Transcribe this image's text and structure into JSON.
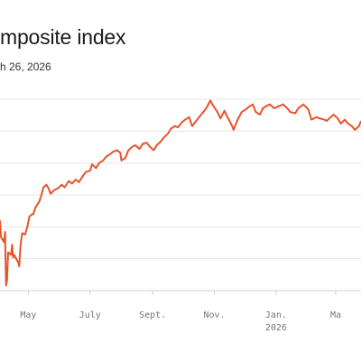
{
  "chart_data": {
    "type": "line",
    "title": "mposite index",
    "subtitle": "h 26, 2026",
    "color": "#e8532b",
    "grid": true,
    "x_ticks": [
      {
        "label": "May",
        "year": "",
        "date": "2025-05-01"
      },
      {
        "label": "July",
        "year": "",
        "date": "2025-07-01"
      },
      {
        "label": "Sept.",
        "year": "",
        "date": "2025-09-01"
      },
      {
        "label": "Nov.",
        "year": "",
        "date": "2025-11-01"
      },
      {
        "label": "Jan.",
        "year": "2026",
        "date": "2026-01-01"
      },
      {
        "label": "Ma",
        "year": "",
        "date": "2026-03-01"
      }
    ],
    "series": [
      {
        "values": [
          [
            "2025-04-03",
            15.5
          ],
          [
            "2025-04-04",
            14.2
          ],
          [
            "2025-04-07",
            13.8
          ],
          [
            "2025-04-08",
            14.6
          ],
          [
            "2025-04-09",
            10.4
          ],
          [
            "2025-04-10",
            10.8
          ],
          [
            "2025-04-11",
            13.0
          ],
          [
            "2025-04-14",
            12.8
          ],
          [
            "2025-04-15",
            13.6
          ],
          [
            "2025-04-16",
            12.6
          ],
          [
            "2025-04-17",
            12.8
          ],
          [
            "2025-04-21",
            12.2
          ],
          [
            "2025-04-22",
            11.9
          ],
          [
            "2025-04-23",
            13.2
          ],
          [
            "2025-04-24",
            14.0
          ],
          [
            "2025-04-25",
            14.5
          ],
          [
            "2025-04-28",
            14.4
          ],
          [
            "2025-04-29",
            14.7
          ],
          [
            "2025-04-30",
            15.0
          ],
          [
            "2025-05-01",
            15.4
          ],
          [
            "2025-05-02",
            15.8
          ],
          [
            "2025-05-05",
            16.0
          ],
          [
            "2025-05-06",
            16.0
          ],
          [
            "2025-05-08",
            16.5
          ],
          [
            "2025-05-12",
            17.0
          ],
          [
            "2025-05-14",
            17.5
          ],
          [
            "2025-05-16",
            18.1
          ],
          [
            "2025-05-19",
            18.3
          ],
          [
            "2025-05-21",
            18.0
          ],
          [
            "2025-05-23",
            17.6
          ],
          [
            "2025-05-27",
            17.9
          ],
          [
            "2025-05-30",
            18.0
          ],
          [
            "2025-06-03",
            18.3
          ],
          [
            "2025-06-06",
            18.1
          ],
          [
            "2025-06-10",
            18.6
          ],
          [
            "2025-06-13",
            18.4
          ],
          [
            "2025-06-17",
            18.7
          ],
          [
            "2025-06-20",
            18.5
          ],
          [
            "2025-06-24",
            19.0
          ],
          [
            "2025-06-27",
            19.3
          ],
          [
            "2025-07-01",
            19.4
          ],
          [
            "2025-07-03",
            19.9
          ],
          [
            "2025-07-07",
            19.6
          ],
          [
            "2025-07-10",
            20.0
          ],
          [
            "2025-07-14",
            20.2
          ],
          [
            "2025-07-17",
            20.5
          ],
          [
            "2025-07-21",
            20.7
          ],
          [
            "2025-07-24",
            20.9
          ],
          [
            "2025-07-28",
            21.0
          ],
          [
            "2025-07-31",
            20.8
          ],
          [
            "2025-08-01",
            20.2
          ],
          [
            "2025-08-05",
            20.4
          ],
          [
            "2025-08-08",
            21.0
          ],
          [
            "2025-08-12",
            21.3
          ],
          [
            "2025-08-15",
            21.4
          ],
          [
            "2025-08-19",
            21.1
          ],
          [
            "2025-08-22",
            21.5
          ],
          [
            "2025-08-26",
            21.6
          ],
          [
            "2025-08-29",
            21.3
          ],
          [
            "2025-09-02",
            21.0
          ],
          [
            "2025-09-05",
            21.4
          ],
          [
            "2025-09-09",
            21.7
          ],
          [
            "2025-09-12",
            22.0
          ],
          [
            "2025-09-16",
            22.3
          ],
          [
            "2025-09-19",
            22.7
          ],
          [
            "2025-09-23",
            22.9
          ],
          [
            "2025-09-26",
            22.8
          ],
          [
            "2025-09-30",
            23.2
          ],
          [
            "2025-10-03",
            23.4
          ],
          [
            "2025-10-07",
            23.6
          ],
          [
            "2025-10-10",
            22.9
          ],
          [
            "2025-10-14",
            23.3
          ],
          [
            "2025-10-17",
            23.6
          ],
          [
            "2025-10-21",
            24.0
          ],
          [
            "2025-10-24",
            24.3
          ],
          [
            "2025-10-28",
            24.9
          ],
          [
            "2025-10-30",
            24.6
          ],
          [
            "2025-11-04",
            24.0
          ],
          [
            "2025-11-07",
            23.5
          ],
          [
            "2025-11-11",
            24.1
          ],
          [
            "2025-11-14",
            23.6
          ],
          [
            "2025-11-18",
            23.0
          ],
          [
            "2025-11-20",
            22.6
          ],
          [
            "2025-11-24",
            23.4
          ],
          [
            "2025-11-28",
            24.0
          ],
          [
            "2025-12-02",
            24.2
          ],
          [
            "2025-12-05",
            24.4
          ],
          [
            "2025-12-09",
            24.6
          ],
          [
            "2025-12-12",
            24.0
          ],
          [
            "2025-12-16",
            23.8
          ],
          [
            "2025-12-19",
            24.3
          ],
          [
            "2025-12-23",
            24.5
          ],
          [
            "2025-12-26",
            24.6
          ],
          [
            "2025-12-30",
            24.3
          ],
          [
            "2026-01-05",
            24.5
          ],
          [
            "2026-01-08",
            24.6
          ],
          [
            "2026-01-12",
            24.3
          ],
          [
            "2026-01-15",
            24.0
          ],
          [
            "2026-01-20",
            23.9
          ],
          [
            "2026-01-23",
            24.3
          ],
          [
            "2026-01-28",
            24.6
          ],
          [
            "2026-02-02",
            24.2
          ],
          [
            "2026-02-05",
            23.4
          ],
          [
            "2026-02-10",
            23.6
          ],
          [
            "2026-02-13",
            23.5
          ],
          [
            "2026-02-18",
            23.4
          ],
          [
            "2026-02-20",
            23.3
          ],
          [
            "2026-02-24",
            23.6
          ],
          [
            "2026-02-27",
            23.8
          ],
          [
            "2026-03-03",
            23.5
          ],
          [
            "2026-03-06",
            23.1
          ],
          [
            "2026-03-10",
            23.4
          ],
          [
            "2026-03-13",
            23.1
          ],
          [
            "2026-03-17",
            22.9
          ],
          [
            "2026-03-20",
            22.6
          ],
          [
            "2026-03-24",
            22.9
          ],
          [
            "2026-03-26",
            23.3
          ]
        ]
      }
    ]
  }
}
